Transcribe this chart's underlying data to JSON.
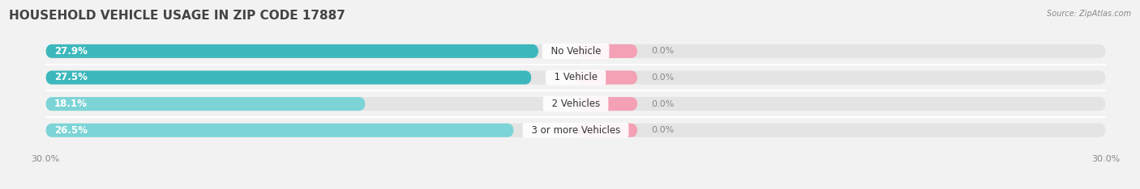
{
  "title": "HOUSEHOLD VEHICLE USAGE IN ZIP CODE 17887",
  "source": "Source: ZipAtlas.com",
  "categories": [
    "No Vehicle",
    "1 Vehicle",
    "2 Vehicles",
    "3 or more Vehicles"
  ],
  "owner_values": [
    27.9,
    27.5,
    18.1,
    26.5
  ],
  "renter_values": [
    0.0,
    0.0,
    0.0,
    0.0
  ],
  "renter_display": [
    3.5,
    3.5,
    3.5,
    3.5
  ],
  "owner_color_dark": "#3cb8bc",
  "owner_color_light": "#7dd4d6",
  "renter_color": "#f4a0b5",
  "background_color": "#f2f2f2",
  "bar_bg_color": "#e4e4e4",
  "x_max": 30.0,
  "title_fontsize": 11,
  "label_fontsize": 8.5,
  "tick_fontsize": 8,
  "bar_height": 0.52
}
